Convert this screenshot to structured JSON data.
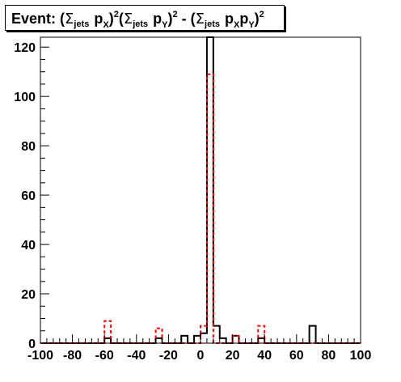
{
  "chart_data": {
    "type": "histogram",
    "title": {
      "prefix": "Event: (",
      "sigma": "Σ",
      "jets": "jets",
      "p": "p",
      "X": "X",
      "Y": "Y",
      "sq": "2",
      "minus": " - (",
      "close": ")"
    },
    "x": {
      "min": -100,
      "max": 100,
      "ticks": [
        -100,
        -80,
        -60,
        -40,
        -20,
        0,
        20,
        40,
        60,
        80,
        100
      ],
      "tick_labels": [
        "-100",
        "-80",
        "-60",
        "-40",
        "-20",
        "0",
        "20",
        "40",
        "60",
        "80",
        "100"
      ]
    },
    "y": {
      "min": 0,
      "max": 124,
      "ticks": [
        0,
        20,
        40,
        60,
        80,
        100,
        120
      ],
      "tick_labels": [
        "0",
        "20",
        "40",
        "60",
        "80",
        "100",
        "120"
      ]
    },
    "bin_edges": [
      -100,
      -96,
      -92,
      -88,
      -84,
      -80,
      -76,
      -72,
      -68,
      -64,
      -60,
      -56,
      -52,
      -48,
      -44,
      -40,
      -36,
      -32,
      -28,
      -24,
      -20,
      -16,
      -12,
      -8,
      -4,
      0,
      4,
      8,
      12,
      16,
      20,
      24,
      28,
      32,
      36,
      40,
      44,
      48,
      52,
      56,
      60,
      64,
      68,
      72,
      76,
      80,
      84,
      88,
      92,
      96,
      100
    ],
    "series": [
      {
        "color": "#000000",
        "style": "solid",
        "values": [
          0,
          0,
          0,
          0,
          0,
          0,
          0,
          0,
          0,
          0,
          2,
          0,
          0,
          0,
          0,
          0,
          0,
          0,
          2,
          0,
          0,
          0,
          3,
          0,
          3,
          4,
          124,
          7,
          2,
          0,
          3,
          0,
          0,
          0,
          2,
          0,
          0,
          0,
          0,
          0,
          0,
          0,
          7,
          0,
          0,
          0,
          0,
          0,
          0,
          0
        ]
      },
      {
        "color": "#ff0000",
        "style": "dashed",
        "values": [
          0,
          0,
          0,
          0,
          0,
          0,
          0,
          0,
          0,
          0,
          9,
          0,
          0,
          0,
          0,
          0,
          0,
          0,
          6,
          0,
          0,
          0,
          0,
          0,
          0,
          7,
          109,
          0,
          0,
          0,
          3,
          0,
          0,
          0,
          7,
          0,
          0,
          0,
          0,
          0,
          0,
          0,
          0,
          0,
          0,
          0,
          0,
          0,
          0,
          0
        ]
      }
    ]
  }
}
